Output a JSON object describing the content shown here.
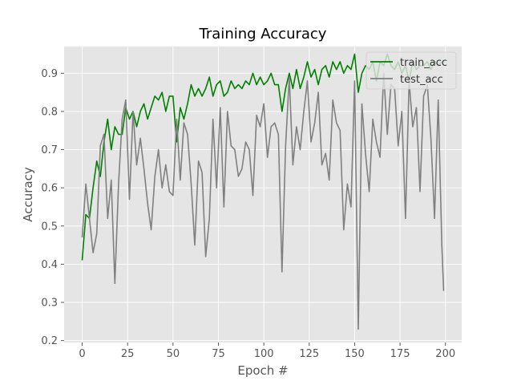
{
  "chart_data": {
    "type": "line",
    "title": "Training Accuracy",
    "xlabel": "Epoch #",
    "ylabel": "Accuracy",
    "xlim": [
      -9.95,
      208.95
    ],
    "ylim": [
      0.195,
      0.97
    ],
    "xticks": [
      0,
      25,
      50,
      75,
      100,
      125,
      150,
      175,
      200
    ],
    "yticks": [
      0.2,
      0.3,
      0.4,
      0.5,
      0.6,
      0.7,
      0.8,
      0.9
    ],
    "grid": true,
    "legend_position": "top-right",
    "colors": {
      "background": "#e5e5e5",
      "grid": "#ffffff",
      "tick": "#555555",
      "train_acc": "#008000",
      "test_acc": "#808080"
    },
    "series": [
      {
        "name": "train_acc",
        "x": [
          0,
          2,
          4,
          6,
          8,
          10,
          12,
          14,
          16,
          18,
          20,
          22,
          24,
          26,
          28,
          30,
          32,
          34,
          36,
          38,
          40,
          42,
          44,
          46,
          48,
          50,
          52,
          54,
          56,
          58,
          60,
          62,
          64,
          66,
          68,
          70,
          72,
          74,
          76,
          78,
          80,
          82,
          84,
          86,
          88,
          90,
          92,
          94,
          96,
          98,
          100,
          102,
          104,
          106,
          108,
          110,
          112,
          114,
          116,
          118,
          120,
          122,
          124,
          126,
          128,
          130,
          132,
          134,
          136,
          138,
          140,
          142,
          144,
          146,
          148,
          150,
          152,
          154,
          156,
          158,
          160,
          162,
          164,
          166,
          168,
          170,
          172,
          174,
          176,
          178,
          180,
          182,
          184,
          186,
          188,
          190,
          192,
          194,
          196,
          198
        ],
        "values": [
          0.41,
          0.53,
          0.52,
          0.6,
          0.67,
          0.63,
          0.72,
          0.78,
          0.7,
          0.76,
          0.74,
          0.74,
          0.81,
          0.78,
          0.8,
          0.76,
          0.8,
          0.82,
          0.78,
          0.81,
          0.84,
          0.83,
          0.85,
          0.8,
          0.84,
          0.84,
          0.72,
          0.81,
          0.78,
          0.82,
          0.87,
          0.84,
          0.86,
          0.84,
          0.86,
          0.89,
          0.84,
          0.87,
          0.88,
          0.84,
          0.85,
          0.88,
          0.86,
          0.87,
          0.86,
          0.88,
          0.87,
          0.9,
          0.87,
          0.89,
          0.87,
          0.88,
          0.9,
          0.87,
          0.87,
          0.8,
          0.86,
          0.9,
          0.86,
          0.91,
          0.86,
          0.89,
          0.93,
          0.89,
          0.91,
          0.87,
          0.91,
          0.92,
          0.89,
          0.93,
          0.91,
          0.93,
          0.9,
          0.92,
          0.91,
          0.95,
          0.85,
          0.9,
          0.92,
          0.91,
          0.93,
          0.88,
          0.93,
          0.92,
          0.95,
          0.92,
          0.91,
          0.93,
          0.9,
          0.92,
          0.88,
          0.93,
          0.91,
          0.92,
          0.92,
          0.93,
          0.91,
          0.93,
          0.92,
          0.93
        ]
      },
      {
        "name": "test_acc",
        "x": [
          0,
          2,
          4,
          6,
          8,
          10,
          12,
          14,
          16,
          18,
          20,
          22,
          24,
          26,
          28,
          30,
          32,
          34,
          36,
          38,
          40,
          42,
          44,
          46,
          48,
          50,
          52,
          54,
          56,
          58,
          60,
          62,
          64,
          66,
          68,
          70,
          72,
          74,
          76,
          78,
          80,
          82,
          84,
          86,
          88,
          90,
          92,
          94,
          96,
          98,
          100,
          102,
          104,
          106,
          108,
          110,
          112,
          114,
          116,
          118,
          120,
          122,
          124,
          126,
          128,
          130,
          132,
          134,
          136,
          138,
          140,
          142,
          144,
          146,
          148,
          150,
          152,
          154,
          156,
          158,
          160,
          162,
          164,
          166,
          168,
          170,
          172,
          174,
          176,
          178,
          180,
          182,
          184,
          186,
          188,
          190,
          192,
          194,
          196,
          198,
          199
        ],
        "values": [
          0.47,
          0.61,
          0.52,
          0.43,
          0.48,
          0.71,
          0.74,
          0.52,
          0.62,
          0.35,
          0.61,
          0.78,
          0.83,
          0.57,
          0.8,
          0.66,
          0.73,
          0.65,
          0.56,
          0.49,
          0.63,
          0.7,
          0.6,
          0.66,
          0.59,
          0.58,
          0.78,
          0.62,
          0.77,
          0.74,
          0.61,
          0.45,
          0.67,
          0.64,
          0.42,
          0.52,
          0.78,
          0.6,
          0.81,
          0.55,
          0.8,
          0.71,
          0.7,
          0.63,
          0.65,
          0.72,
          0.7,
          0.58,
          0.79,
          0.76,
          0.82,
          0.68,
          0.76,
          0.77,
          0.74,
          0.38,
          0.71,
          0.89,
          0.66,
          0.76,
          0.7,
          0.8,
          0.88,
          0.72,
          0.77,
          0.85,
          0.66,
          0.69,
          0.62,
          0.83,
          0.77,
          0.75,
          0.49,
          0.61,
          0.55,
          0.88,
          0.23,
          0.82,
          0.69,
          0.59,
          0.78,
          0.72,
          0.68,
          0.9,
          0.74,
          0.87,
          0.86,
          0.71,
          0.8,
          0.52,
          0.88,
          0.76,
          0.81,
          0.59,
          0.84,
          0.87,
          0.73,
          0.52,
          0.83,
          0.45,
          0.33
        ]
      }
    ]
  }
}
